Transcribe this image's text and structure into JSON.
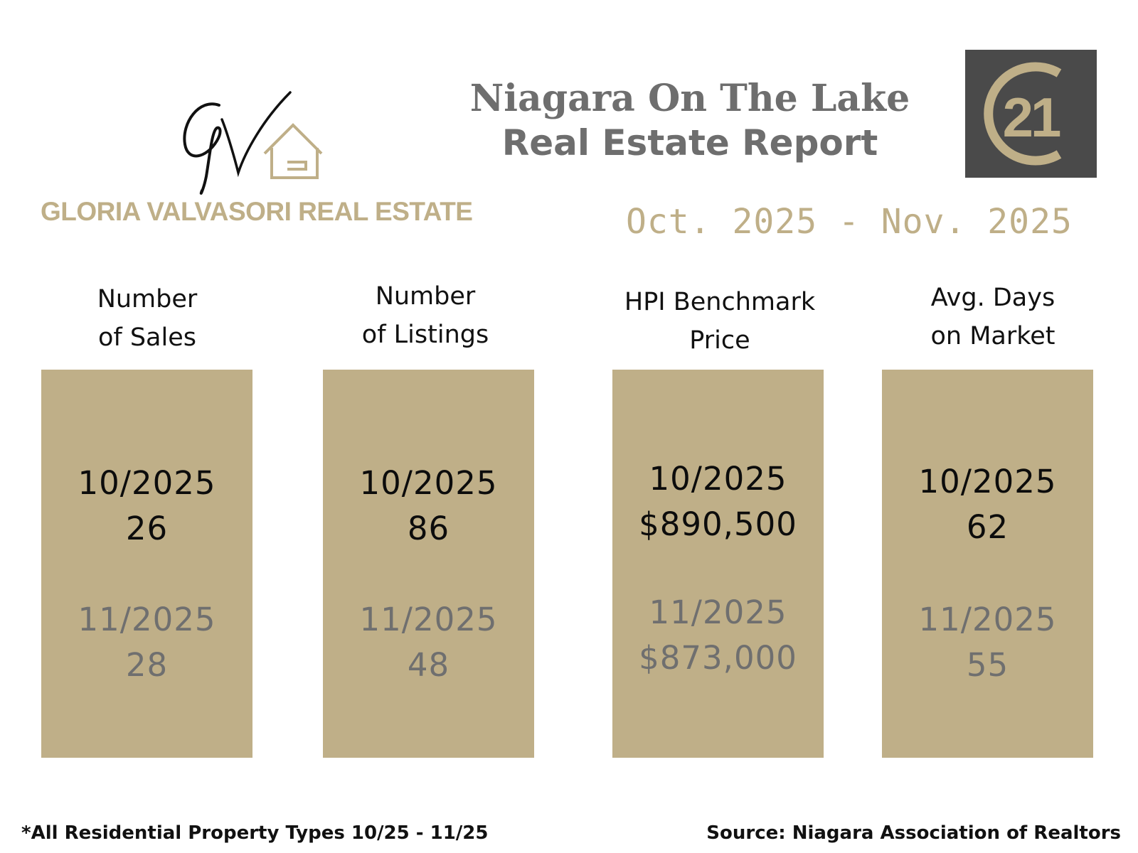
{
  "brand": {
    "name": "GLORIA VALVASORI REAL ESTATE",
    "logo_icon": "gv-house-icon",
    "color": "#bfaf88"
  },
  "report": {
    "title_line1": "Niagara On The Lake",
    "title_line2": "Real Estate Report",
    "title_color": "#6e6e6e",
    "date_range": "Oct. 2025 - Nov. 2025",
    "date_color": "#bfaf88"
  },
  "c21_logo": {
    "text": "21",
    "icon": "century21-logo",
    "bg_color": "#4a4a4a",
    "accent_color": "#bfaf88"
  },
  "card_color": "#bfaf88",
  "stats": [
    {
      "header_lines": [
        "Number",
        "of Sales"
      ],
      "current": {
        "period": "10/2025",
        "value": "26"
      },
      "previous": {
        "period": "11/2025",
        "value": "28"
      }
    },
    {
      "header_lines": [
        "Number",
        "of Listings"
      ],
      "current": {
        "period": "10/2025",
        "value": "86"
      },
      "previous": {
        "period": "11/2025",
        "value": "48"
      }
    },
    {
      "header_lines": [
        "HPI Benchmark",
        "Price"
      ],
      "current": {
        "period": "10/2025",
        "value": "$890,500"
      },
      "previous": {
        "period": "11/2025",
        "value": "$873,000"
      }
    },
    {
      "header_lines": [
        "Avg. Days",
        "on Market"
      ],
      "current": {
        "period": "10/2025",
        "value": "62"
      },
      "previous": {
        "period": "11/2025",
        "value": "55"
      }
    }
  ],
  "footer": {
    "footnote": "*All Residential Property Types 10/25 - 11/25",
    "source": "Source: Niagara Association of Realtors"
  }
}
